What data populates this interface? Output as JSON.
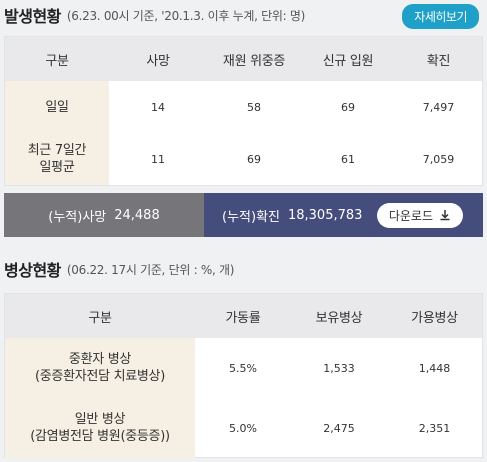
{
  "occurrence": {
    "title": "발생현황",
    "subtitle": "(6.23. 00시 기준, '20.1.3. 이후 누계, 단위: 명)",
    "detail_button": "자세히보기",
    "headers": [
      "구분",
      "사망",
      "재원 위중증",
      "신규 입원",
      "확진"
    ],
    "rows": [
      {
        "label": "일일",
        "cells": [
          "14",
          "58",
          "69",
          "7,497"
        ]
      },
      {
        "label": "최근 7일간\n일평균",
        "cells": [
          "11",
          "69",
          "61",
          "7,059"
        ]
      }
    ]
  },
  "cumulative": {
    "deaths_label": "(누적)사망",
    "deaths_value": "24,488",
    "confirmed_label": "(누적)확진",
    "confirmed_value": "18,305,783",
    "download_label": "다운로드"
  },
  "beds": {
    "title": "병상현황",
    "subtitle": "(06.22. 17시 기준, 단위 : %, 개)",
    "headers": [
      "구분",
      "가동률",
      "보유병상",
      "가용병상"
    ],
    "rows": [
      {
        "label": "중환자 병상\n(중증환자전담 치료병상)",
        "cells": [
          "5.5%",
          "1,533",
          "1,448"
        ]
      },
      {
        "label": "일반 병상\n(감염병전담 병원(중등증))",
        "cells": [
          "5.0%",
          "2,475",
          "2,351"
        ]
      }
    ]
  },
  "icons": {
    "download": "download-icon"
  }
}
